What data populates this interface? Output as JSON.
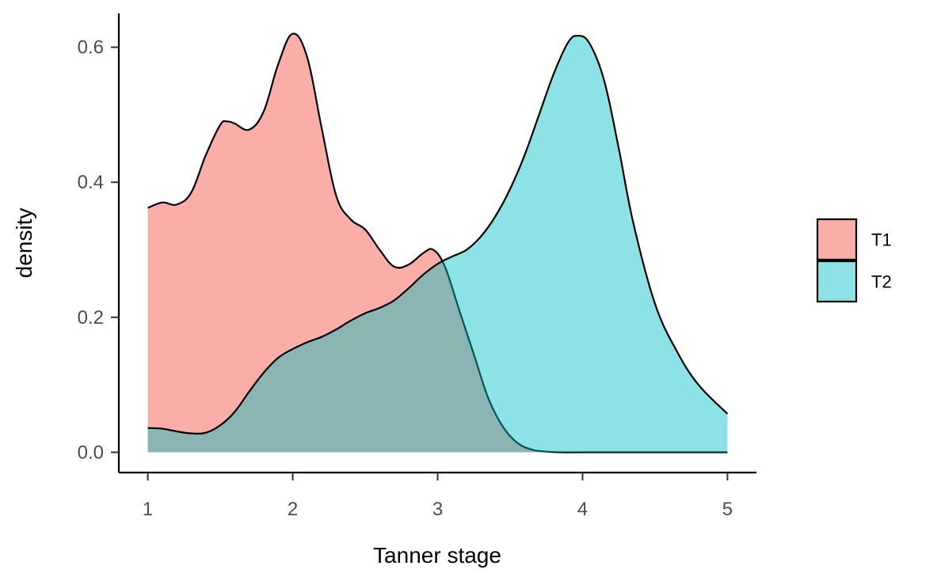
{
  "chart_data": {
    "type": "area",
    "title": "",
    "xlabel": "Tanner stage",
    "ylabel": "density",
    "xlim": [
      0.8,
      5.2
    ],
    "ylim": [
      -0.03,
      0.65
    ],
    "x_ticks": [
      1,
      2,
      3,
      4,
      5
    ],
    "x_tick_labels": [
      "1",
      "2",
      "3",
      "4",
      "5"
    ],
    "y_ticks": [
      0.0,
      0.2,
      0.4,
      0.6
    ],
    "y_tick_labels": [
      "0.0",
      "0.2",
      "0.4",
      "0.6"
    ],
    "grid": false,
    "legend_position": "right",
    "series": [
      {
        "name": "T1",
        "fill": "#F8766D",
        "fill_opacity": 0.6,
        "x": [
          1.0,
          1.1,
          1.2,
          1.3,
          1.4,
          1.5,
          1.55,
          1.6,
          1.7,
          1.8,
          1.9,
          2.0,
          2.1,
          2.2,
          2.3,
          2.4,
          2.5,
          2.6,
          2.7,
          2.8,
          2.9,
          2.97,
          3.05,
          3.15,
          3.25,
          3.35,
          3.45,
          3.55,
          3.65,
          3.75,
          3.85,
          4.0,
          4.5,
          5.0
        ],
        "y": [
          0.362,
          0.37,
          0.367,
          0.385,
          0.44,
          0.485,
          0.49,
          0.487,
          0.478,
          0.505,
          0.575,
          0.62,
          0.585,
          0.48,
          0.38,
          0.345,
          0.33,
          0.3,
          0.275,
          0.278,
          0.295,
          0.3,
          0.275,
          0.21,
          0.145,
          0.08,
          0.038,
          0.014,
          0.004,
          0.001,
          0.0,
          0.0,
          0.0,
          0.0
        ]
      },
      {
        "name": "T2",
        "fill": "#00BFC4",
        "fill_opacity": 0.45,
        "x": [
          1.0,
          1.1,
          1.2,
          1.3,
          1.4,
          1.5,
          1.6,
          1.7,
          1.8,
          1.9,
          2.0,
          2.1,
          2.2,
          2.3,
          2.4,
          2.5,
          2.6,
          2.7,
          2.8,
          2.9,
          3.0,
          3.1,
          3.2,
          3.3,
          3.4,
          3.5,
          3.6,
          3.7,
          3.8,
          3.9,
          3.97,
          4.05,
          4.15,
          4.25,
          4.35,
          4.5,
          4.65,
          4.8,
          5.0
        ],
        "y": [
          0.036,
          0.035,
          0.031,
          0.028,
          0.029,
          0.04,
          0.06,
          0.09,
          0.118,
          0.14,
          0.153,
          0.163,
          0.171,
          0.182,
          0.195,
          0.206,
          0.214,
          0.225,
          0.243,
          0.263,
          0.279,
          0.29,
          0.3,
          0.32,
          0.35,
          0.39,
          0.44,
          0.5,
          0.56,
          0.607,
          0.617,
          0.605,
          0.55,
          0.45,
          0.34,
          0.22,
          0.15,
          0.1,
          0.057
        ]
      }
    ]
  }
}
